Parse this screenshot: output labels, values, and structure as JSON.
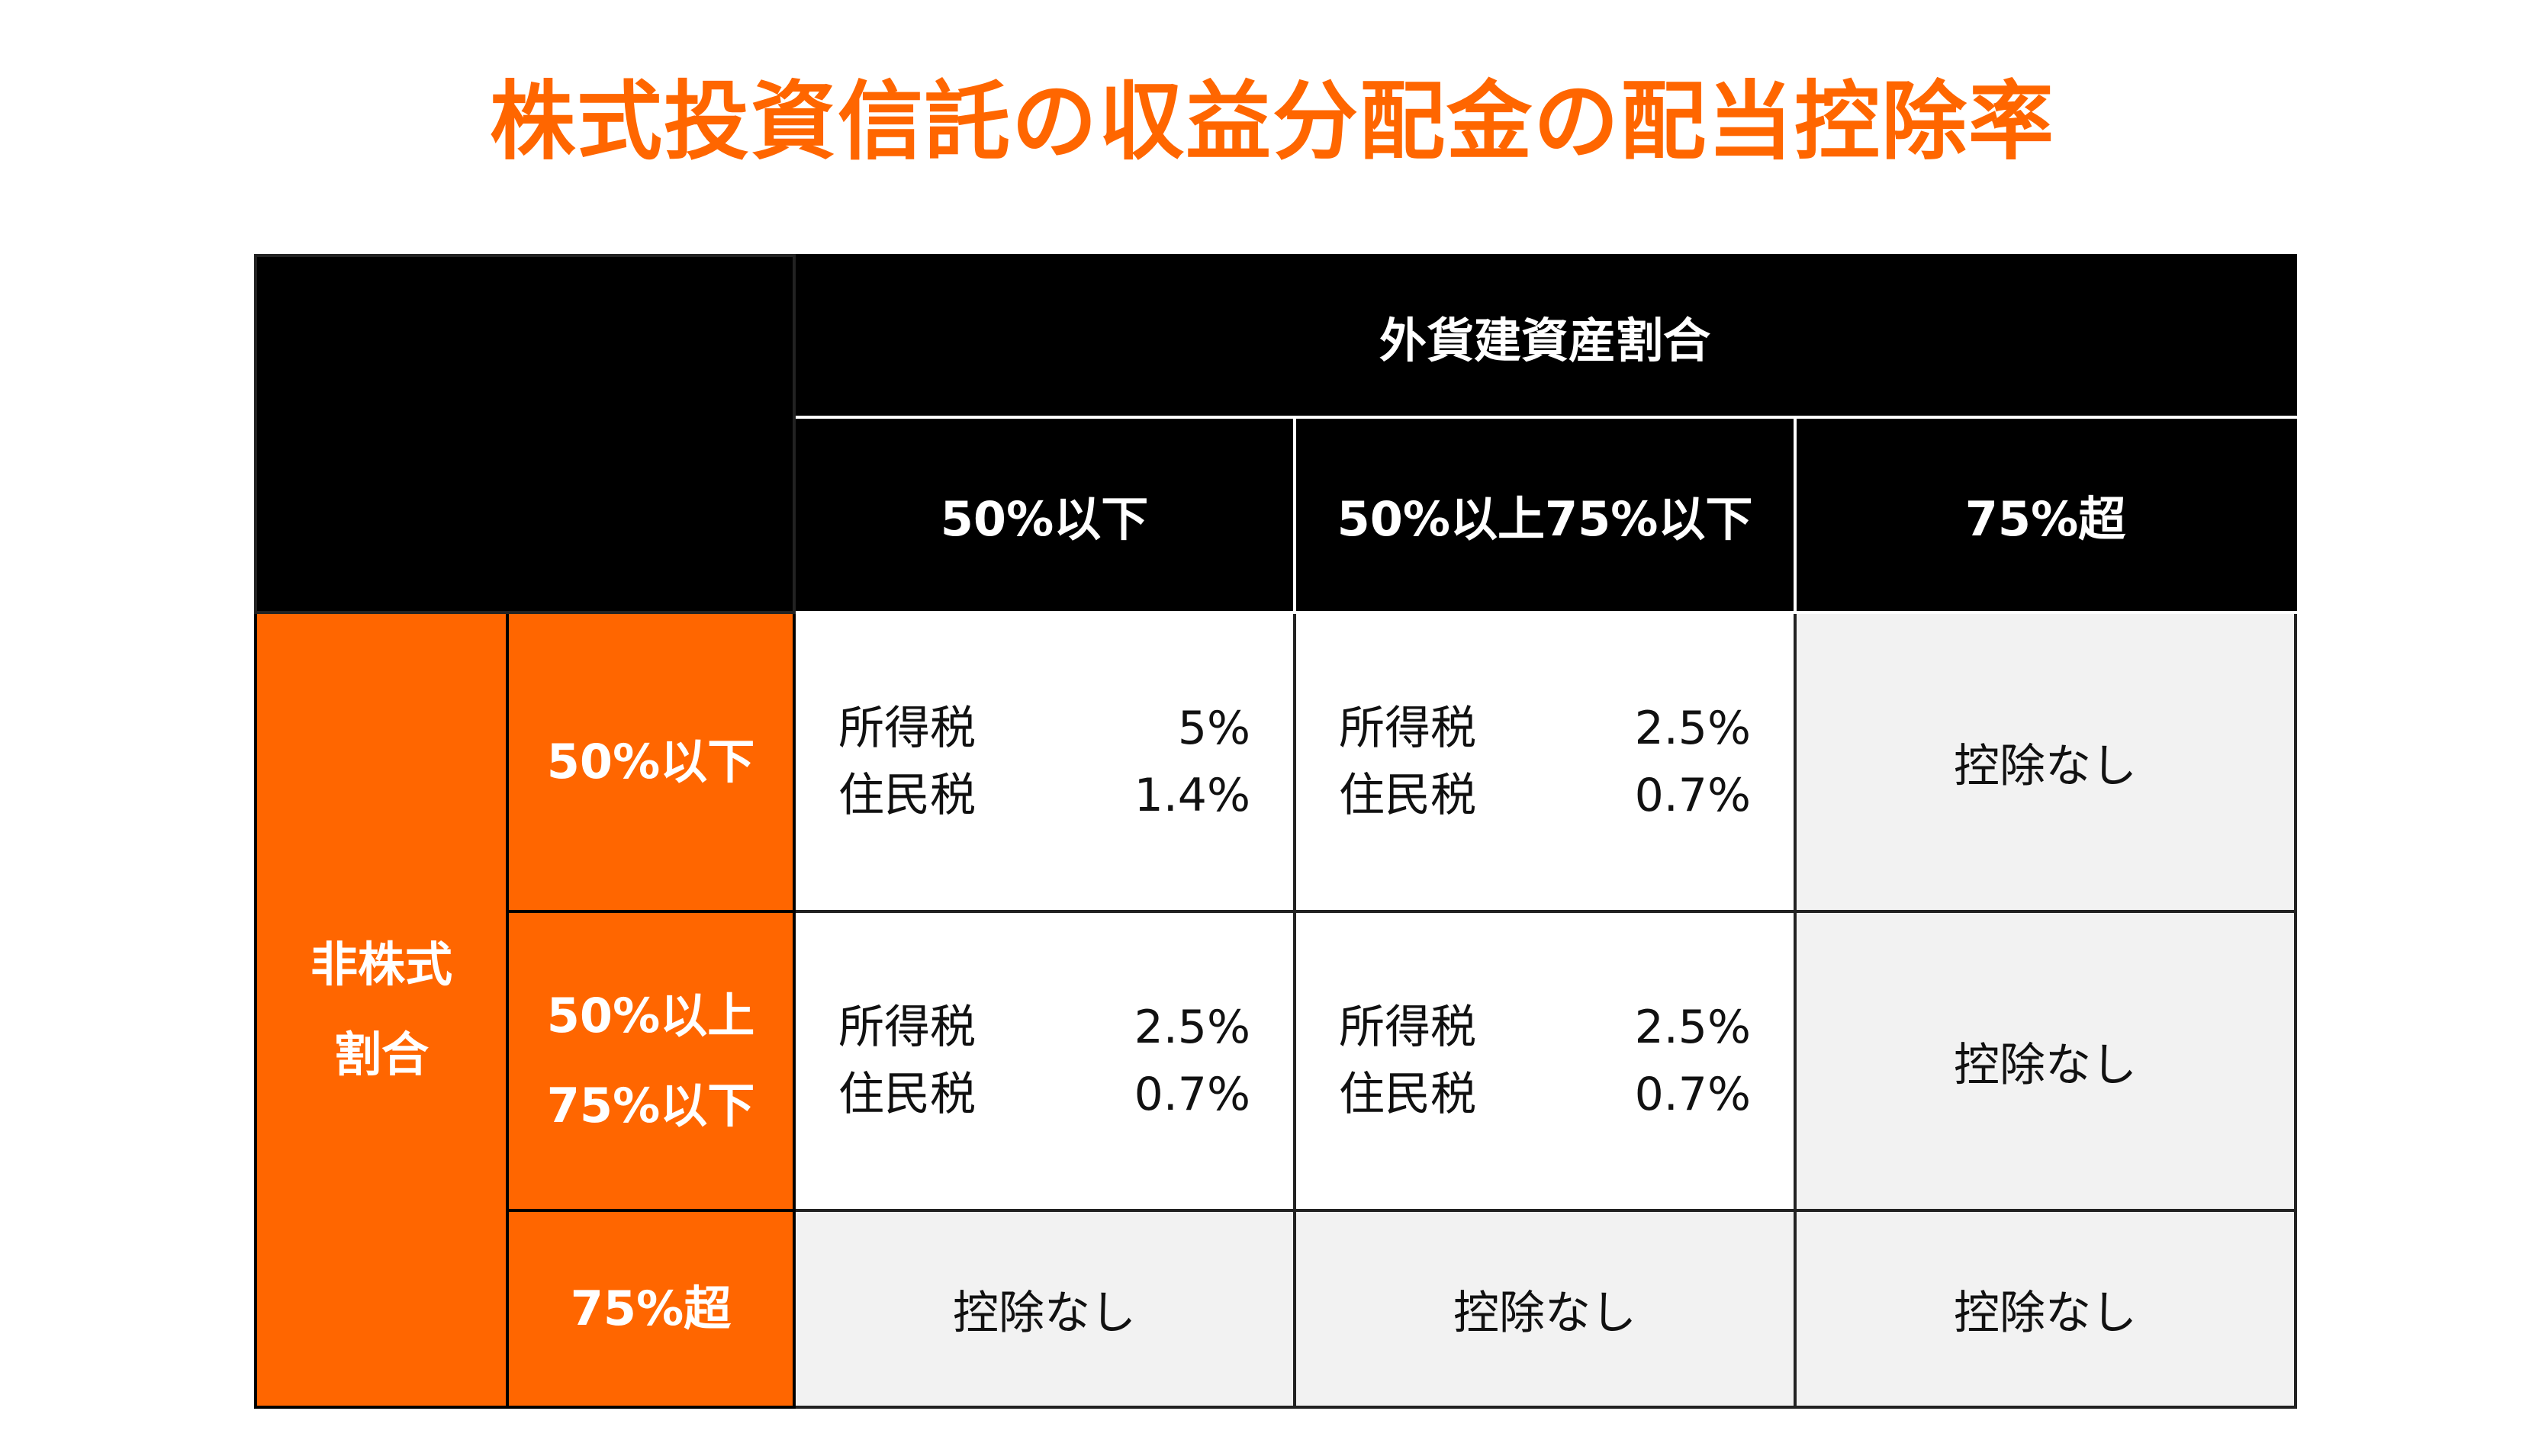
{
  "title": "株式投資信託の収益分配金の配当控除率",
  "table": {
    "col_group_label": "外貨建資産割合",
    "col_labels": [
      "50%以下",
      "50%以上75%以下",
      "75%超"
    ],
    "row_group_label_line1": "非株式",
    "row_group_label_line2": "割合",
    "row_labels": [
      {
        "line1": "50%以下",
        "line2": ""
      },
      {
        "line1": "50%以上",
        "line2": "75%以下"
      },
      {
        "line1": "75%超",
        "line2": ""
      }
    ],
    "rows": [
      [
        {
          "type": "pair",
          "k1": "所得税",
          "v1": "5%",
          "k2": "住民税",
          "v2": "1.4%"
        },
        {
          "type": "pair",
          "k1": "所得税",
          "v1": "2.5%",
          "k2": "住民税",
          "v2": "0.7%"
        },
        {
          "type": "text",
          "text": "控除なし"
        }
      ],
      [
        {
          "type": "pair",
          "k1": "所得税",
          "v1": "2.5%",
          "k2": "住民税",
          "v2": "0.7%"
        },
        {
          "type": "pair",
          "k1": "所得税",
          "v1": "2.5%",
          "k2": "住民税",
          "v2": "0.7%"
        },
        {
          "type": "text",
          "text": "控除なし"
        }
      ],
      [
        {
          "type": "text",
          "text": "控除なし"
        },
        {
          "type": "text",
          "text": "控除なし"
        },
        {
          "type": "text",
          "text": "控除なし"
        }
      ]
    ]
  },
  "colors": {
    "accent": "#ff6600",
    "header_bg": "#000000",
    "gray_cell": "#f2f2f2"
  }
}
